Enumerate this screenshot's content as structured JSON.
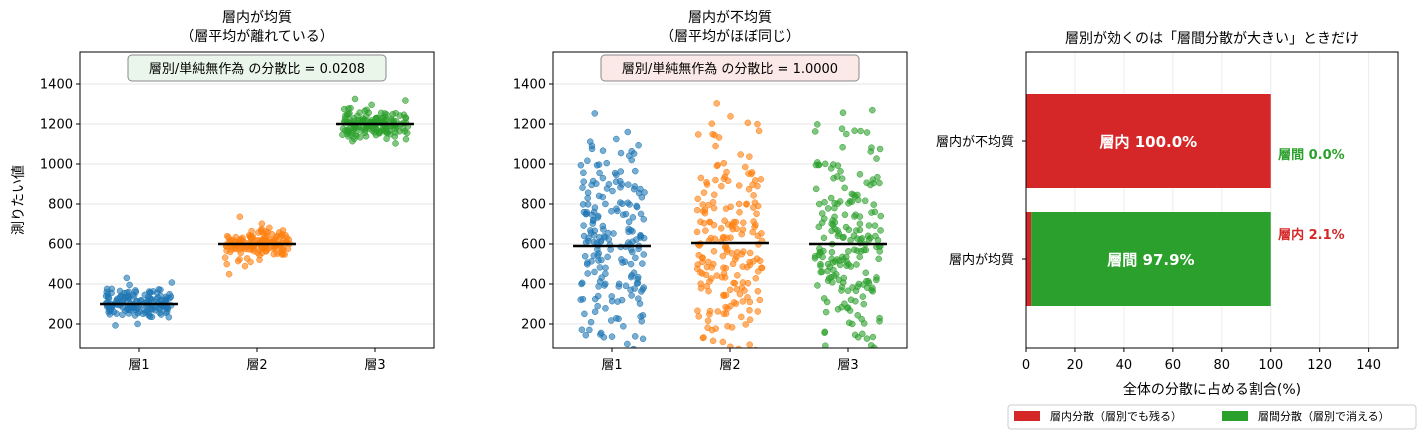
{
  "chart_data": [
    {
      "type": "scatter",
      "title_line1": "層内が均質",
      "title_line2": "（層平均が離れている）",
      "ylabel": "測りたい値",
      "categories": [
        "層1",
        "層2",
        "層3"
      ],
      "ylim": [
        80,
        1560
      ],
      "yticks": [
        200,
        400,
        600,
        800,
        1000,
        1200,
        1400
      ],
      "grid": true,
      "series": [
        {
          "category": "層1",
          "mean": 300,
          "spread": 40,
          "n": 150,
          "color": "#1f77b4"
        },
        {
          "category": "層2",
          "mean": 600,
          "spread": 40,
          "n": 150,
          "color": "#ff7f0e"
        },
        {
          "category": "層3",
          "mean": 1200,
          "spread": 40,
          "n": 150,
          "color": "#2ca02c"
        }
      ],
      "annotation": "層別/単純無作為 の分散比 = 0.0208",
      "annotation_bg": "#eaf6ea"
    },
    {
      "type": "scatter",
      "title_line1": "層内が不均質",
      "title_line2": "（層平均がほぼ同じ）",
      "categories": [
        "層1",
        "層2",
        "層3"
      ],
      "ylim": [
        80,
        1560
      ],
      "yticks": [
        200,
        400,
        600,
        800,
        1000,
        1200,
        1400
      ],
      "grid": true,
      "series": [
        {
          "category": "層1",
          "mean": 590,
          "spread": 250,
          "n": 200,
          "color": "#1f77b4"
        },
        {
          "category": "層2",
          "mean": 605,
          "spread": 250,
          "n": 200,
          "color": "#ff7f0e"
        },
        {
          "category": "層3",
          "mean": 600,
          "spread": 250,
          "n": 200,
          "color": "#2ca02c"
        }
      ],
      "annotation": "層別/単純無作為 の分散比 = 1.0000",
      "annotation_bg": "#fbe9e7"
    },
    {
      "type": "bar",
      "orientation": "horizontal",
      "stacked": true,
      "title": "層別が効くのは「層間分散が大きい」ときだけ",
      "xlabel": "全体の分散に占める割合(%)",
      "xlim": [
        0,
        152
      ],
      "xticks": [
        0,
        20,
        40,
        60,
        80,
        100,
        120,
        140
      ],
      "grid": true,
      "categories": [
        "層内が不均質",
        "層内が均質"
      ],
      "series": [
        {
          "name": "層内分散（層別でも残る）",
          "color": "#d62728",
          "values": [
            100.0,
            2.1
          ],
          "short": "層内"
        },
        {
          "name": "層間分散（層別で消える）",
          "color": "#2ca02c",
          "values": [
            0.0,
            97.9
          ],
          "short": "層間"
        }
      ],
      "legend_position": "bottom"
    }
  ]
}
